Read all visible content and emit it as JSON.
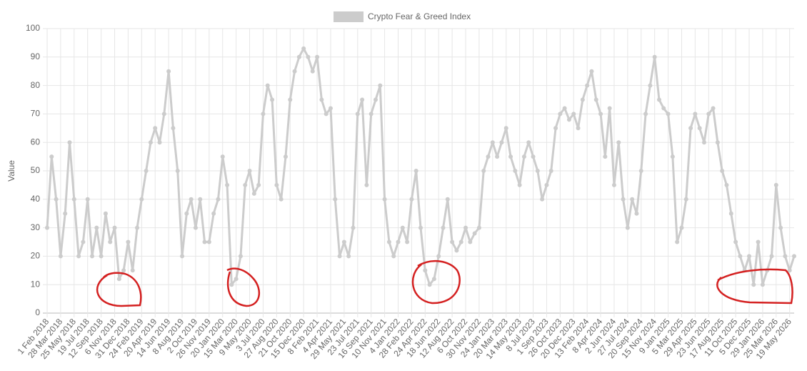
{
  "chart_data": {
    "type": "line",
    "y_label": "Value",
    "ylim": [
      0,
      100
    ],
    "yticks": [
      0,
      10,
      20,
      30,
      40,
      50,
      60,
      70,
      80,
      90,
      100
    ],
    "grid": true,
    "legend": "top",
    "categories": [
      "1 Feb 2018",
      null,
      null,
      "28 Mar 2018",
      null,
      null,
      "25 May 2018",
      null,
      null,
      "19 Jul 2018",
      null,
      null,
      "12 Sep 2018",
      null,
      null,
      "6 Nov 2018",
      null,
      null,
      "31 Dec 2018",
      null,
      null,
      "24 Feb 2019",
      null,
      null,
      "20 Apr 2019",
      null,
      null,
      "14 Jun 2019",
      null,
      null,
      "8 Aug 2019",
      null,
      null,
      "2 Oct 2019",
      null,
      null,
      "26 Nov 2019",
      null,
      null,
      "20 Jan 2020",
      null,
      null,
      "15 Mar 2020",
      null,
      null,
      "9 May 2020",
      null,
      null,
      "3 Jul 2020",
      null,
      null,
      "27 Aug 2020",
      null,
      null,
      "21 Oct 2020",
      null,
      null,
      "15 Dec 2020",
      null,
      null,
      "8 Feb 2021",
      null,
      null,
      "4 Apr 2021",
      null,
      null,
      "29 May 2021",
      null,
      null,
      "23 Jul 2021",
      null,
      null,
      "16 Sep 2021",
      null,
      null,
      "10 Nov 2021",
      null,
      null,
      "4 Jan 2022",
      null,
      null,
      "28 Feb 2022",
      null,
      null,
      "24 Apr 2022",
      null,
      null,
      "18 Jun 2022",
      null,
      null,
      "12 Aug 2022",
      null,
      null,
      "6 Oct 2022",
      null,
      null,
      "30 Nov 2022",
      null,
      null,
      "24 Jan 2023",
      null,
      null,
      "20 Mar 2023",
      null,
      null,
      "14 May 2023",
      null,
      null,
      "8 Jul 2023",
      null,
      null,
      "1 Sep 2023",
      null,
      null,
      "26 Oct 2023",
      null,
      null,
      "20 Dec 2023",
      null,
      null,
      "13 Feb 2024",
      null,
      null,
      "8 Apr 2024",
      null,
      null,
      "2 Jun 2024",
      null,
      null,
      "27 Jul 2024",
      null,
      null,
      "20 Sep 2024",
      null,
      null,
      "15 Nov 2024",
      null,
      null,
      "9 Jan 2025",
      null,
      null,
      "5 Mar 2025",
      null,
      null,
      "29 Apr 2025",
      null,
      null,
      "23 Jun 2025",
      null,
      null,
      "17 Aug 2025",
      null,
      null,
      "11 Oct 2025",
      null,
      null,
      "5 Dec 2025",
      null,
      null,
      "29 Jan 2026",
      null,
      null,
      "25 Mar 2026",
      null,
      null,
      "19 May 2026",
      null
    ],
    "series": [
      {
        "name": "Crypto Fear & Greed Index",
        "color": "#cccccc",
        "values": [
          30,
          55,
          40,
          20,
          35,
          60,
          40,
          20,
          25,
          40,
          20,
          30,
          20,
          35,
          25,
          30,
          12,
          15,
          25,
          15,
          30,
          40,
          50,
          60,
          65,
          60,
          70,
          85,
          65,
          50,
          20,
          35,
          40,
          30,
          40,
          25,
          25,
          35,
          40,
          55,
          45,
          10,
          12,
          20,
          45,
          50,
          42,
          45,
          70,
          80,
          75,
          45,
          40,
          55,
          75,
          85,
          90,
          93,
          90,
          85,
          90,
          75,
          70,
          72,
          40,
          20,
          25,
          20,
          30,
          70,
          75,
          45,
          70,
          75,
          80,
          40,
          25,
          20,
          25,
          30,
          25,
          40,
          50,
          30,
          15,
          10,
          12,
          20,
          30,
          40,
          25,
          22,
          25,
          30,
          25,
          28,
          30,
          50,
          55,
          60,
          55,
          60,
          65,
          55,
          50,
          45,
          55,
          60,
          55,
          50,
          40,
          45,
          50,
          65,
          70,
          72,
          68,
          70,
          65,
          75,
          80,
          85,
          75,
          70,
          55,
          72,
          45,
          60,
          40,
          30,
          40,
          35,
          50,
          70,
          80,
          90,
          75,
          72,
          70,
          55,
          25,
          30,
          40,
          65,
          70,
          65,
          60,
          70,
          72,
          60,
          50,
          45,
          35,
          25,
          20,
          15,
          20,
          10,
          25,
          10,
          15,
          20,
          45,
          30,
          20,
          15,
          20
        ]
      }
    ]
  }
}
